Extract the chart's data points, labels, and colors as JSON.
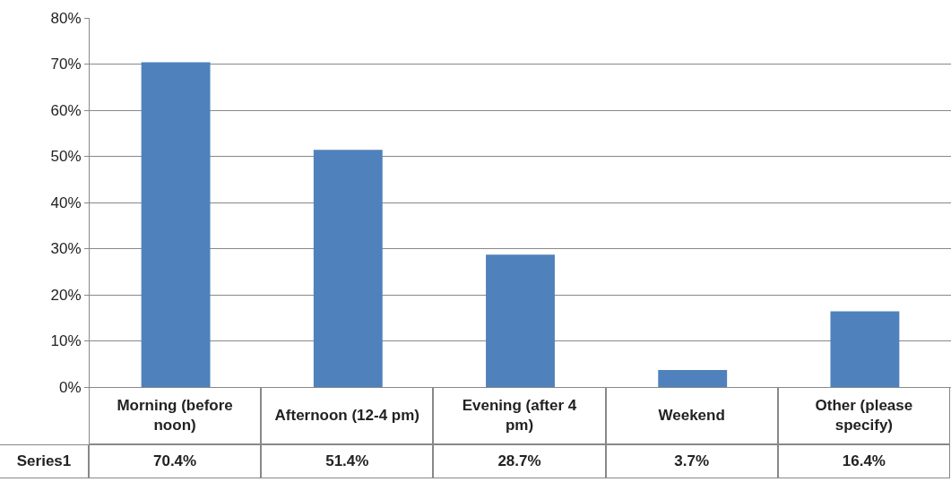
{
  "chart_data": {
    "type": "bar",
    "categories": [
      "Morning (before noon)",
      "Afternoon (12-4 pm)",
      "Evening (after 4 pm)",
      "Weekend",
      "Other (please specify)"
    ],
    "series": [
      {
        "name": "Series1",
        "color": "#4f81bd",
        "values": [
          70.4,
          51.4,
          28.7,
          3.7,
          16.4
        ],
        "value_labels": [
          "70.4%",
          "51.4%",
          "28.7%",
          "3.7%",
          "16.4%"
        ]
      }
    ],
    "ylim": [
      0,
      80
    ],
    "yticks": [
      {
        "value": 0,
        "label": "0%"
      },
      {
        "value": 10,
        "label": "10%"
      },
      {
        "value": 20,
        "label": "20%"
      },
      {
        "value": 30,
        "label": "30%"
      },
      {
        "value": 40,
        "label": "40%"
      },
      {
        "value": 50,
        "label": "50%"
      },
      {
        "value": 60,
        "label": "60%"
      },
      {
        "value": 70,
        "label": "70%"
      },
      {
        "value": 80,
        "label": "80%"
      }
    ],
    "grid": "y",
    "legend": false
  }
}
